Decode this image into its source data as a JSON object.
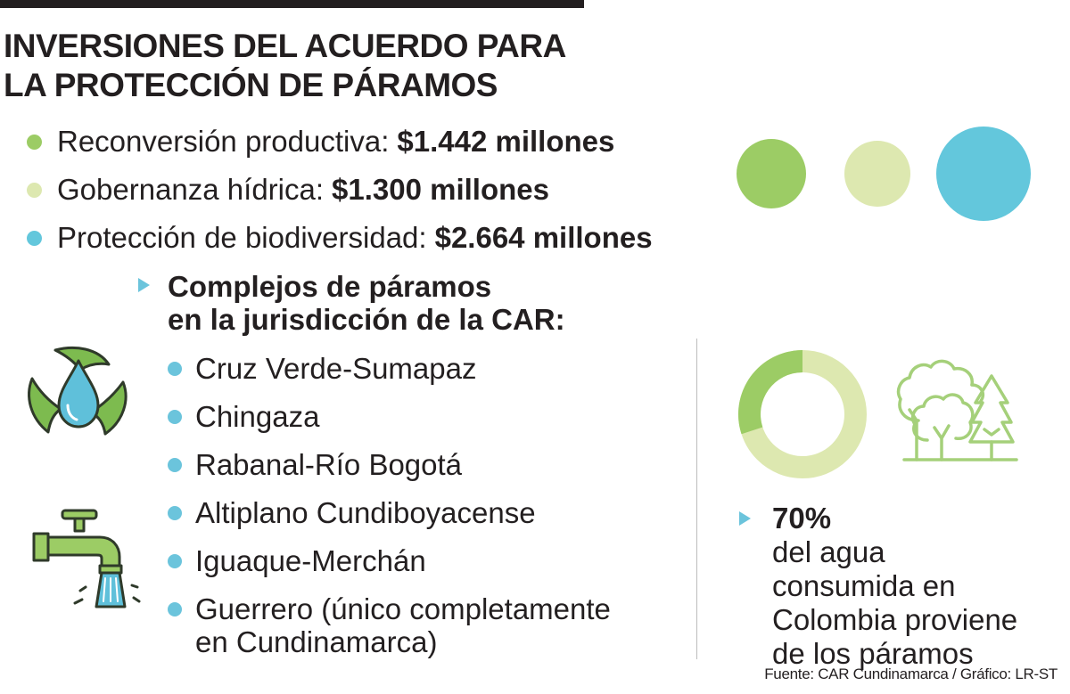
{
  "title": {
    "line1": "INVERSIONES DEL ACUERDO PARA",
    "line2": "LA PROTECCIÓN DE PÁRAMOS"
  },
  "chart_data": {
    "type": "bubble",
    "unit": "millones",
    "series": [
      {
        "name": "Reconversión productiva",
        "value": 1442,
        "label": "Reconversión productiva:",
        "amount_label": "$1.442 millones",
        "color": "#9ccc65"
      },
      {
        "name": "Gobernanza hídrica",
        "value": 1300,
        "label": "Gobernanza hídrica:",
        "amount_label": "$1.300 millones",
        "color": "#dde8b0"
      },
      {
        "name": "Protección de biodiversidad",
        "value": 2664,
        "label": "Protección de biodiversidad:",
        "amount_label": "$2.664 millones",
        "color": "#63c7dc"
      }
    ]
  },
  "complexes": {
    "title_line1": "Complejos de páramos",
    "title_line2": "en la jurisdicción de la CAR:",
    "items": [
      {
        "line1": "Cruz Verde-Sumapaz",
        "line2": ""
      },
      {
        "line1": "Chingaza",
        "line2": ""
      },
      {
        "line1": "Rabanal-Río Bogotá",
        "line2": ""
      },
      {
        "line1": "Altiplano Cundiboyacense",
        "line2": ""
      },
      {
        "line1": "Iguaque-Merchán",
        "line2": ""
      },
      {
        "line1": "Guerrero (único completamente",
        "line2": "en Cundinamarca)"
      }
    ]
  },
  "water_stat": {
    "percent_value": 70,
    "percent_label": "70%",
    "line1_rest": " del agua",
    "line2": "consumida en",
    "line3": "Colombia proviene",
    "line4": "de los páramos",
    "donut_colors": {
      "filled": "#9ccc65",
      "rest": "#dde8b0"
    }
  },
  "icons": {
    "recycle": "water-drop-leaves-icon",
    "faucet": "faucet-icon",
    "forest": "trees-icon"
  },
  "colors": {
    "text": "#231f20",
    "accent_blue": "#6bc4dc",
    "green": "#9ccc65",
    "light_green": "#dde8b0",
    "blue": "#63c7dc"
  },
  "source": "Fuente: CAR Cundinamarca / Gráfico: LR-ST"
}
